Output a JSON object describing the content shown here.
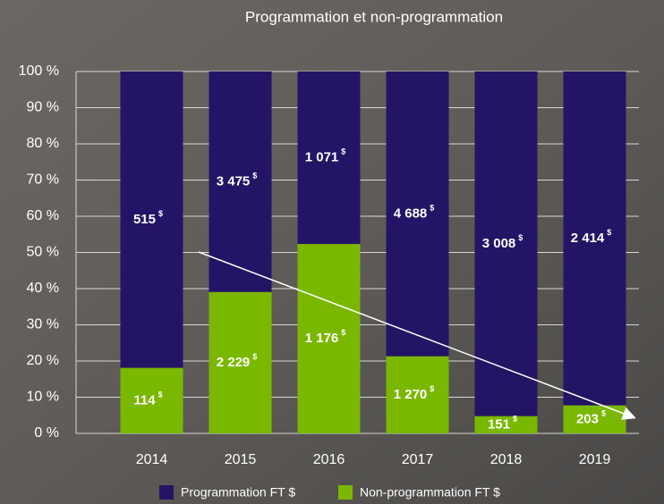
{
  "chart_data": {
    "type": "bar",
    "stacked": "percent",
    "title": "Programmation et non-programmation",
    "categories": [
      "2014",
      "2015",
      "2016",
      "2017",
      "2018",
      "2019"
    ],
    "value_unit": "$",
    "series": [
      {
        "name": "Non-programmation FT $",
        "color": "#7ab800",
        "values": [
          114,
          2229,
          1176,
          1270,
          151,
          203
        ],
        "value_labels": [
          "114",
          "2 229",
          "1 176",
          "1 270",
          "151",
          "203"
        ]
      },
      {
        "name": "Programmation FT $",
        "color": "#241466",
        "values": [
          515,
          3475,
          1071,
          4688,
          3008,
          2414
        ],
        "value_labels": [
          "515",
          "3 475",
          "1 071",
          "4 688",
          "3 008",
          "2 414"
        ]
      }
    ],
    "ylim": [
      0,
      100
    ],
    "yticks": [
      {
        "value": 0,
        "label": "0 %"
      },
      {
        "value": 10,
        "label": "10 %"
      },
      {
        "value": 20,
        "label": "20 %"
      },
      {
        "value": 30,
        "label": "30 %"
      },
      {
        "value": 40,
        "label": "40 %"
      },
      {
        "value": 50,
        "label": "50 %"
      },
      {
        "value": 60,
        "label": "60 %"
      },
      {
        "value": 70,
        "label": "70 %"
      },
      {
        "value": 80,
        "label": "80 %"
      },
      {
        "value": 90,
        "label": "90 %"
      },
      {
        "value": 100,
        "label": "100 %"
      }
    ],
    "grid": true,
    "legend": "bottom"
  }
}
